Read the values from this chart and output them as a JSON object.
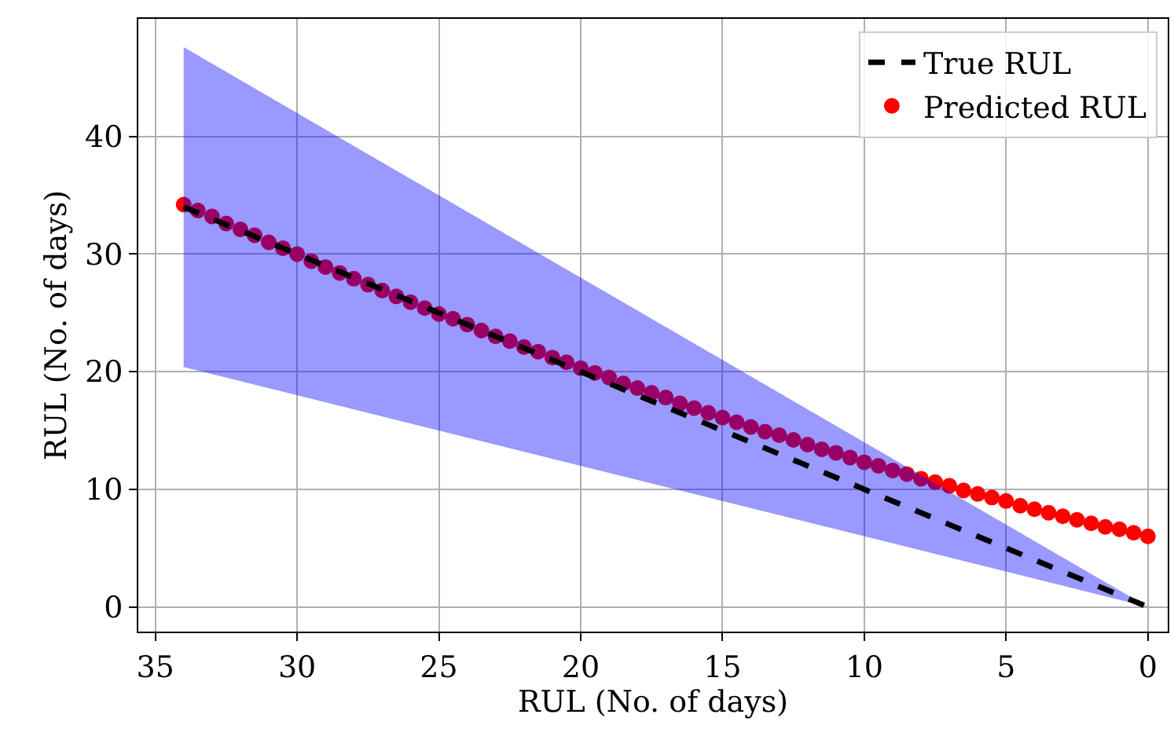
{
  "chart_data": {
    "type": "line",
    "xlabel": "RUL (No. of days)",
    "ylabel": "RUL (No. of days)",
    "xlim": [
      35.6,
      -0.7
    ],
    "xticks": [
      35,
      30,
      25,
      20,
      15,
      10,
      5,
      0
    ],
    "ylim": [
      -2.1,
      50.0
    ],
    "yticks": [
      0,
      10,
      20,
      30,
      40
    ],
    "grid": true,
    "legend": "top right",
    "series": [
      {
        "name": "True RUL",
        "color": "#000000",
        "line_style": "dashed",
        "x": [
          34,
          0
        ],
        "values": [
          34,
          0
        ],
        "lower": [
          20.4,
          0
        ],
        "upper": [
          47.6,
          0
        ]
      },
      {
        "name": "Predicted RUL",
        "type": "scatter",
        "color": "#ff0000",
        "marker": "circle",
        "x": [
          34,
          33.5,
          33,
          32.5,
          32,
          31.5,
          31,
          30.5,
          30,
          29.5,
          29,
          28.5,
          28,
          27.5,
          27,
          26.5,
          26,
          25.5,
          25,
          24.5,
          24,
          23.5,
          23,
          22.5,
          22,
          21.5,
          21,
          20.5,
          20,
          19.5,
          19,
          18.5,
          18,
          17.5,
          17,
          16.5,
          16,
          15.5,
          15,
          14.5,
          14,
          13.5,
          13,
          12.5,
          12,
          11.5,
          11,
          10.5,
          10,
          9.5,
          9,
          8.5,
          8,
          7.5,
          7,
          6.5,
          6,
          5.5,
          5,
          4.5,
          4,
          3.5,
          3,
          2.5,
          2,
          1.5,
          1,
          0.5,
          0
        ],
        "values": [
          34.2,
          33.7,
          33.2,
          32.6,
          32.1,
          31.6,
          31.0,
          30.5,
          30.0,
          29.4,
          28.9,
          28.4,
          27.9,
          27.4,
          26.9,
          26.4,
          25.9,
          25.4,
          24.9,
          24.5,
          24.0,
          23.5,
          23.0,
          22.6,
          22.1,
          21.7,
          21.2,
          20.8,
          20.3,
          19.9,
          19.5,
          19.0,
          18.6,
          18.2,
          17.8,
          17.3,
          16.9,
          16.5,
          16.1,
          15.7,
          15.3,
          14.9,
          14.6,
          14.2,
          13.8,
          13.4,
          13.1,
          12.7,
          12.3,
          12.0,
          11.6,
          11.3,
          10.9,
          10.6,
          10.3,
          9.9,
          9.6,
          9.3,
          9.0,
          8.6,
          8.3,
          8.0,
          7.7,
          7.4,
          7.1,
          6.8,
          6.6,
          6.3,
          6.0
        ]
      }
    ]
  }
}
